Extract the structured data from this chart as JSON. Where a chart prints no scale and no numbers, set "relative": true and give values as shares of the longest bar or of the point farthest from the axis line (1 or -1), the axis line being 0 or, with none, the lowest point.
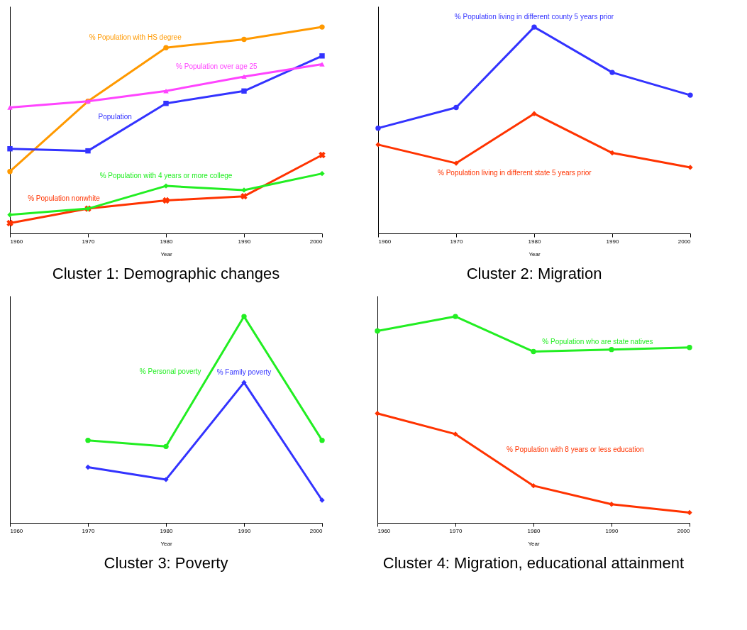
{
  "chart_data": [
    {
      "type": "line",
      "title": "Cluster 1: Demographic changes",
      "xlabel": "Year",
      "x": [
        1960,
        1970,
        1980,
        1990,
        2000
      ],
      "xlim": [
        1960,
        2000
      ],
      "xticks": [
        1960,
        1970,
        1980,
        1990,
        2000
      ],
      "relative": true,
      "grid": false,
      "line_style": "solid",
      "series": [
        {
          "name": "% Population with HS degree",
          "color": "#ff9900",
          "marker": "circle",
          "values": [
            0.3,
            0.64,
            0.9,
            0.94,
            1
          ]
        },
        {
          "name": "Population",
          "color": "#3333ff",
          "marker": "square",
          "values": [
            0.41,
            0.4,
            0.63,
            0.69,
            0.86
          ]
        },
        {
          "name": "% Population over age 25",
          "color": "#ff44ff",
          "marker": "triangle",
          "values": [
            0.61,
            0.64,
            0.69,
            0.76,
            0.82
          ]
        },
        {
          "name": "% Population nonwhite",
          "color": "#ff3300",
          "marker": "cross",
          "values": [
            0.05,
            0.12,
            0.16,
            0.18,
            0.38
          ]
        },
        {
          "name": "% Population with 4 years or more college",
          "color": "#22ee22",
          "marker": "diamond",
          "values": [
            0.09,
            0.12,
            0.23,
            0.21,
            0.29
          ]
        }
      ]
    },
    {
      "type": "line",
      "title": "Cluster 2: Migration",
      "xlabel": "Year",
      "x": [
        1960,
        1970,
        1980,
        1990,
        2000
      ],
      "xlim": [
        1960,
        2000
      ],
      "xticks": [
        1960,
        1970,
        1980,
        1990,
        2000
      ],
      "relative": true,
      "grid": false,
      "line_style": "solid",
      "series": [
        {
          "name": "% Population living in different county 5 years prior",
          "color": "#3333ff",
          "marker": "circle",
          "values": [
            0.51,
            0.61,
            1,
            0.78,
            0.67
          ]
        },
        {
          "name": "% Population living in different state 5 years prior",
          "color": "#ff3300",
          "marker": "diamond",
          "values": [
            0.43,
            0.34,
            0.58,
            0.39,
            0.32
          ]
        }
      ]
    },
    {
      "type": "line",
      "title": "Cluster 3: Poverty",
      "xlabel": "Year",
      "x": [
        1970,
        1980,
        1990,
        2000
      ],
      "xlim": [
        1960,
        2000
      ],
      "xticks": [
        1960,
        1970,
        1980,
        1990,
        2000
      ],
      "relative": true,
      "grid": false,
      "line_style": "solid",
      "series": [
        {
          "name": "% Personal poverty",
          "color": "#22ee22",
          "marker": "circle",
          "values": [
            0.4,
            0.37,
            1,
            0.4
          ]
        },
        {
          "name": "% Family poverty",
          "color": "#3333ff",
          "marker": "diamond",
          "values": [
            0.27,
            0.21,
            0.68,
            0.11
          ]
        }
      ]
    },
    {
      "type": "line",
      "title": "Cluster 4: Migration, educational attainment",
      "xlabel": "Year",
      "x": [
        1960,
        1970,
        1980,
        1990,
        2000
      ],
      "xlim": [
        1960,
        2000
      ],
      "xticks": [
        1960,
        1970,
        1980,
        1990,
        2000
      ],
      "relative": true,
      "grid": false,
      "line_style": "solid",
      "series": [
        {
          "name": "% Population who are state natives",
          "color": "#22ee22",
          "marker": "circle",
          "values": [
            0.93,
            1,
            0.83,
            0.84,
            0.85
          ]
        },
        {
          "name": "% Population with 8 years or less education",
          "color": "#ff3300",
          "marker": "diamond",
          "values": [
            0.53,
            0.43,
            0.18,
            0.09,
            0.05
          ]
        }
      ]
    }
  ]
}
